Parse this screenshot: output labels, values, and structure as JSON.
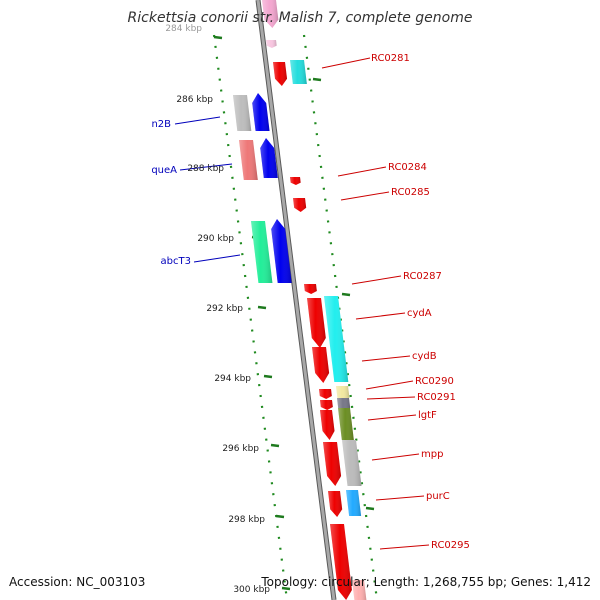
{
  "title": "Rickettsia conorii str. Malish 7, complete genome",
  "accession_text": "Accession: NC_003103",
  "stats_text": "Topology: circular; Length: 1,268,755 bp; Genes: 1,412",
  "colors": {
    "backbone": "#8c8c8c",
    "tick": "#1e7a1e",
    "dot": "#1f8a1f",
    "label_forward": "#cc0000",
    "label_reverse": "#0000bb",
    "leader_forward": "#cc0000",
    "leader_reverse": "#0000bb"
  },
  "scale_labels": [
    "284 kbp",
    "286 kbp",
    "288 kbp",
    "290 kbp",
    "292 kbp",
    "294 kbp",
    "296 kbp",
    "298 kbp",
    "300 kbp"
  ],
  "gene_labels_reverse": [
    "n2B",
    "queA",
    "abcT3"
  ],
  "gene_labels_forward": [
    "RC0281",
    "RC0284",
    "RC0285",
    "RC0287",
    "cydA",
    "cydB",
    "RC0290",
    "RC0291",
    "lgtF",
    "mpp",
    "purC",
    "RC0295"
  ]
}
